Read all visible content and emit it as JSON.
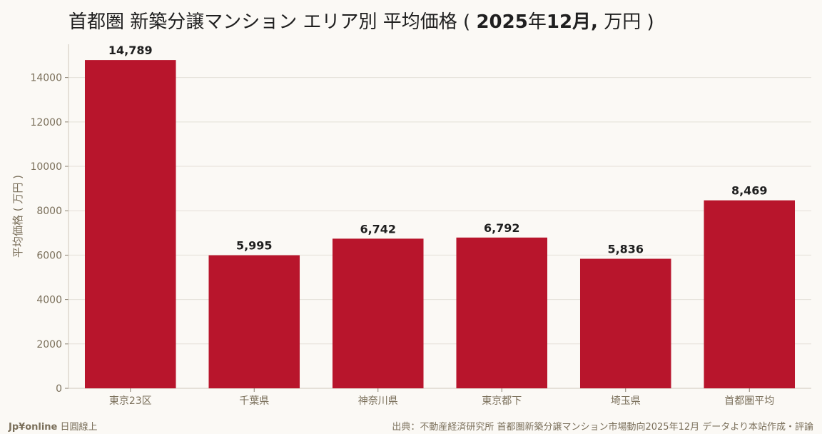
{
  "title": {
    "prefix": "首都圏 新築分譲マンション エリア別 平均価格 ( ",
    "period_year": "2025",
    "year_char": "年",
    "period_month": "12",
    "month_char": "月,",
    "unit": " 万円 )"
  },
  "chart_data": {
    "type": "bar",
    "categories": [
      "東京23区",
      "千葉県",
      "神奈川県",
      "東京都下",
      "埼玉県",
      "首都圏平均"
    ],
    "values": [
      14789,
      5995,
      6742,
      6792,
      5836,
      8469
    ],
    "value_labels": [
      "14,789",
      "5,995",
      "6,742",
      "6,792",
      "5,836",
      "8,469"
    ],
    "ylabel": "平均価格 ( 万円 )",
    "ylim": [
      0,
      15500
    ],
    "yticks": [
      0,
      2000,
      4000,
      6000,
      8000,
      10000,
      12000,
      14000
    ],
    "grid": true,
    "bar_color": "#b8152c"
  },
  "footer": {
    "brand": "Jp¥online",
    "brand_sub": " 日圓線上",
    "source": "出典：不動産経済研究所 首都圏新築分譲マンション市場動向2025年12月 データより本站作成・評論"
  }
}
